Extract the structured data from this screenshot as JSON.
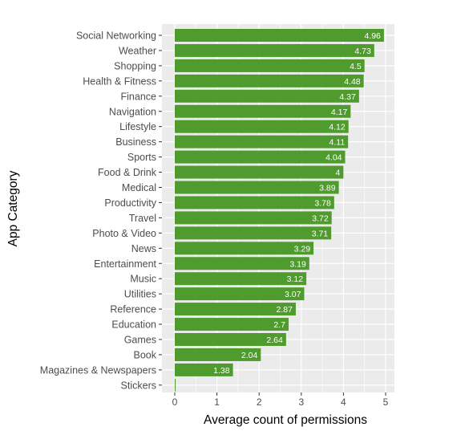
{
  "chart_data": {
    "type": "bar",
    "orientation": "horizontal",
    "title": "",
    "xlabel": "Average count of permissions",
    "ylabel": "App Category",
    "xlim": [
      0,
      5.2
    ],
    "xticks": [
      0,
      1,
      2,
      3,
      4,
      5
    ],
    "grid": true,
    "legend": "none",
    "categories": [
      "Social Networking",
      "Weather",
      "Shopping",
      "Health & Fitness",
      "Finance",
      "Navigation",
      "Lifestyle",
      "Business",
      "Sports",
      "Food & Drink",
      "Medical",
      "Productivity",
      "Travel",
      "Photo & Video",
      "News",
      "Entertainment",
      "Music",
      "Utilities",
      "Reference",
      "Education",
      "Games",
      "Book",
      "Magazines & Newspapers",
      "Stickers"
    ],
    "values": [
      4.96,
      4.73,
      4.5,
      4.48,
      4.37,
      4.17,
      4.12,
      4.11,
      4.04,
      4,
      3.89,
      3.78,
      3.72,
      3.71,
      3.29,
      3.19,
      3.12,
      3.07,
      2.87,
      2.7,
      2.64,
      2.04,
      1.38,
      0.02
    ],
    "data_labels": [
      "4.96",
      "4.73",
      "4.5",
      "4.48",
      "4.37",
      "4.17",
      "4.12",
      "4.11",
      "4.04",
      "4",
      "3.89",
      "3.78",
      "3.72",
      "3.71",
      "3.29",
      "3.19",
      "3.12",
      "3.07",
      "2.87",
      "2.7",
      "2.64",
      "2.04",
      "1.38",
      ""
    ]
  },
  "colors": {
    "bar": "#4f9b2e",
    "panel": "#ebebeb",
    "grid": "#ffffff",
    "text": "#4d4d4d",
    "title": "#000000",
    "label": "#ffffff"
  }
}
